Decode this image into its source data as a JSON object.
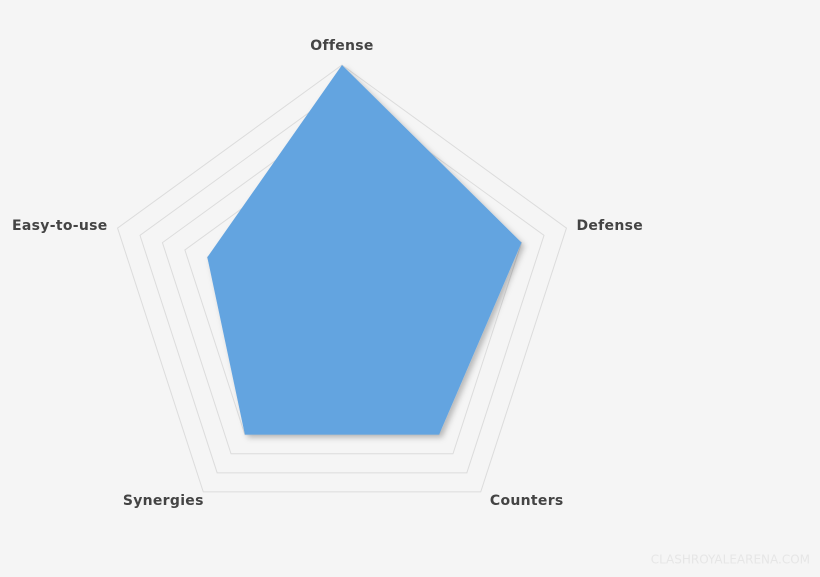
{
  "chart_data": {
    "type": "radar",
    "categories": [
      "Offense",
      "Defense",
      "Counters",
      "Synergies",
      "Easy-to-use"
    ],
    "values": [
      10,
      8,
      7,
      7,
      6
    ],
    "color": "#64a4e0",
    "rlim": [
      0,
      10
    ],
    "rticks": [
      1,
      2,
      3,
      4,
      5,
      6,
      7,
      8,
      9,
      10
    ],
    "grid": true,
    "watermark": "CLASHROYALEARENA.COM"
  }
}
